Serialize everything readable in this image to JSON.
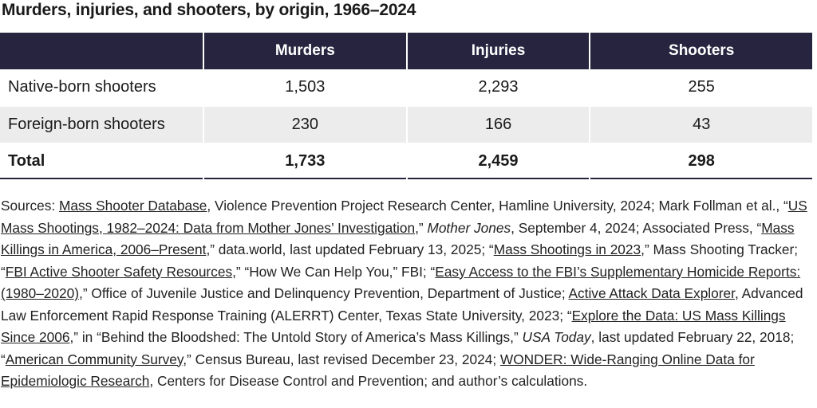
{
  "title": "Murders, injuries, and shooters, by origin, 1966–2024",
  "table": {
    "columns": [
      "Murders",
      "Injuries",
      "Shooters"
    ],
    "rows": [
      [
        "Native-born shooters",
        "1,503",
        "2,293",
        "255"
      ],
      [
        "Foreign-born shooters",
        "230",
        "166",
        "43"
      ]
    ],
    "total": [
      "Total",
      "1,733",
      "2,459",
      "298"
    ]
  },
  "sources": [
    {
      "text": "Sources: ",
      "kind": "text"
    },
    {
      "text": "Mass Shooter Database",
      "kind": "link"
    },
    {
      "text": ", Violence Prevention Project Research Center, Hamline University, 2024; Mark Follman et al., “",
      "kind": "text"
    },
    {
      "text": "US Mass Shootings, 1982–2024: Data from Mother Jones’ Investigation",
      "kind": "link"
    },
    {
      "text": ",” ",
      "kind": "text"
    },
    {
      "text": "Mother Jones",
      "kind": "italic"
    },
    {
      "text": ", September 4, 2024; Associated Press, “",
      "kind": "text"
    },
    {
      "text": "Mass Killings in America, 2006–Present",
      "kind": "link"
    },
    {
      "text": ",” data.world, last updated February 13, 2025; “",
      "kind": "text"
    },
    {
      "text": "Mass Shootings in 2023",
      "kind": "link"
    },
    {
      "text": ",” Mass Shooting Tracker; “",
      "kind": "text"
    },
    {
      "text": "FBI Active Shooter Safety Resources",
      "kind": "link"
    },
    {
      "text": ",” “How We Can Help You,” FBI; “",
      "kind": "text"
    },
    {
      "text": "Easy Access to the FBI’s Supplementary Homicide Reports: (1980–2020)",
      "kind": "link"
    },
    {
      "text": ",” Office of Juvenile Justice and Delinquency Prevention, Department of Justice; ",
      "kind": "text"
    },
    {
      "text": "Active Attack Data Explorer",
      "kind": "link"
    },
    {
      "text": ", Advanced Law Enforcement Rapid Response Training (ALERRT) Center, Texas State University, 2023; “",
      "kind": "text"
    },
    {
      "text": "Explore the Data: US Mass Killings Since 2006",
      "kind": "link"
    },
    {
      "text": ",” in “Behind the Bloodshed: The Untold Story of America’s Mass Killings,” ",
      "kind": "text"
    },
    {
      "text": "USA Today",
      "kind": "italic"
    },
    {
      "text": ", last updated February 22, 2018; “",
      "kind": "text"
    },
    {
      "text": "American Community Survey",
      "kind": "link"
    },
    {
      "text": ",” Census Bureau, last revised December 23, 2024; ",
      "kind": "text"
    },
    {
      "text": "WONDER: Wide-Ranging Online Data for Epidemiologic Research",
      "kind": "link"
    },
    {
      "text": ", Centers for Disease Control and Prevention; and author’s calculations.",
      "kind": "text"
    }
  ]
}
